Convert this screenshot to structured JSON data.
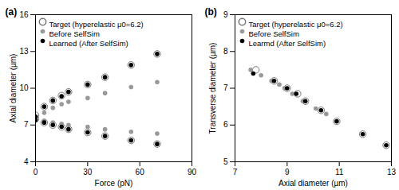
{
  "chart_data": [
    {
      "type": "scatter",
      "title": "(a)",
      "x_label": "Force (pN)",
      "y_label": "Axial diameter (µm)",
      "xlim": [
        0,
        90
      ],
      "xticks": [
        0,
        30,
        60,
        90
      ],
      "ylim": [
        4,
        16
      ],
      "yticks": [
        4,
        7,
        10,
        13,
        16
      ],
      "grid": false,
      "legend": "top-left",
      "series": [
        {
          "name": "Target (hyperelastic μ0=6.2)",
          "color": "#777777",
          "marker": "circle_open",
          "x": [
            0,
            5,
            10,
            15,
            19,
            30,
            40,
            55,
            70,
            0,
            5,
            10,
            15,
            19,
            30,
            40,
            55,
            70
          ],
          "values": [
            7.8,
            8.5,
            9.0,
            9.4,
            9.7,
            10.3,
            10.9,
            11.9,
            12.8,
            7.5,
            7.2,
            7.0,
            6.85,
            6.65,
            6.4,
            6.1,
            5.75,
            5.45
          ]
        },
        {
          "name": "Before SelfSim",
          "color": "#999999",
          "marker": "circle",
          "x": [
            0,
            5,
            10,
            15,
            19,
            30,
            40,
            55,
            70,
            0,
            5,
            10,
            15,
            19,
            30,
            40,
            55,
            70
          ],
          "values": [
            7.6,
            8.0,
            8.4,
            8.7,
            8.9,
            9.2,
            9.6,
            10.1,
            10.5,
            7.5,
            7.35,
            7.2,
            7.1,
            7.0,
            6.85,
            6.65,
            6.45,
            6.3
          ]
        },
        {
          "name": "Learned (After SelfSim)",
          "color": "#000000",
          "marker": "circle",
          "x": [
            0,
            5,
            10,
            15,
            19,
            30,
            40,
            55,
            70,
            0,
            5,
            10,
            15,
            19,
            30,
            40,
            55,
            70
          ],
          "values": [
            7.7,
            8.5,
            9.0,
            9.35,
            9.7,
            10.3,
            10.9,
            11.9,
            12.8,
            7.4,
            7.2,
            7.0,
            6.85,
            6.65,
            6.4,
            6.1,
            5.75,
            5.45
          ]
        }
      ]
    },
    {
      "type": "scatter",
      "title": "(b)",
      "x_label": "Axial diameter (µm)",
      "y_label": "Transverse diameter (µm)",
      "xlim": [
        7,
        13
      ],
      "xticks": [
        7,
        9,
        11,
        13
      ],
      "ylim": [
        5,
        9
      ],
      "yticks": [
        5,
        6,
        7,
        8,
        9
      ],
      "grid": false,
      "legend": "top-left",
      "series": [
        {
          "name": "Target (hyperelastic μ0=6.2)",
          "color": "#777777",
          "marker": "circle_open",
          "x": [
            7.8,
            8.5,
            9.0,
            9.4,
            9.7,
            10.3,
            10.9,
            11.9,
            12.8
          ],
          "values": [
            7.5,
            7.2,
            7.0,
            6.85,
            6.65,
            6.4,
            6.1,
            5.75,
            5.45
          ]
        },
        {
          "name": "Before SelfSim",
          "color": "#999999",
          "marker": "circle",
          "x": [
            7.6,
            8.0,
            8.4,
            8.7,
            8.9,
            9.2,
            9.6,
            10.1,
            10.5
          ],
          "values": [
            7.5,
            7.35,
            7.2,
            7.1,
            7.0,
            6.85,
            6.65,
            6.45,
            6.3
          ]
        },
        {
          "name": "Learmd (After SelfSim)",
          "color": "#000000",
          "marker": "circle",
          "x": [
            7.7,
            8.5,
            9.0,
            9.35,
            9.7,
            10.3,
            10.9,
            11.9,
            12.8
          ],
          "values": [
            7.4,
            7.2,
            7.0,
            6.85,
            6.65,
            6.4,
            6.1,
            5.75,
            5.45
          ]
        }
      ]
    }
  ]
}
